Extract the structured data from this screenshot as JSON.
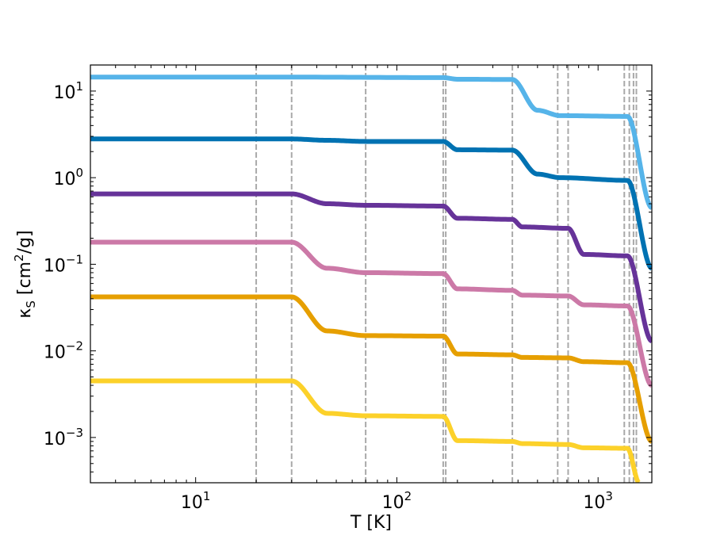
{
  "chart_data": {
    "type": "line",
    "xlabel": "T [K]",
    "ylabel": "κ_S [cm^2/g]",
    "xscale": "log",
    "yscale": "log",
    "xlim": [
      3,
      1850
    ],
    "ylim": [
      0.0003,
      20
    ],
    "xticks": [
      {
        "value": 10,
        "base": "10",
        "exp": "1"
      },
      {
        "value": 100,
        "base": "10",
        "exp": "2"
      },
      {
        "value": 1000,
        "base": "10",
        "exp": "3"
      }
    ],
    "yticks": [
      {
        "value": 10,
        "base": "10",
        "exp": "1"
      },
      {
        "value": 1,
        "base": "10",
        "exp": "0"
      },
      {
        "value": 0.1,
        "base": "10",
        "exp": "−1"
      },
      {
        "value": 0.01,
        "base": "10",
        "exp": "−2"
      },
      {
        "value": 0.001,
        "base": "10",
        "exp": "−3"
      }
    ],
    "grid": false,
    "vertical_lines": [
      20,
      30,
      70,
      170,
      175,
      375,
      630,
      710,
      1350,
      1430,
      1500,
      1550
    ],
    "vertical_line_color": "#a9a9a9",
    "series": [
      {
        "color": "#56b4e9",
        "x": [
          3,
          30,
          170,
          200,
          375,
          500,
          650,
          1400,
          1850
        ],
        "y": [
          14.5,
          14.5,
          14.3,
          13.7,
          13.6,
          6.0,
          5.2,
          5.1,
          0.45
        ]
      },
      {
        "color": "#0072b2",
        "x": [
          3,
          30,
          45,
          70,
          170,
          200,
          375,
          500,
          650,
          1400,
          1850
        ],
        "y": [
          2.8,
          2.8,
          2.7,
          2.62,
          2.62,
          2.1,
          2.08,
          1.1,
          1.0,
          0.93,
          0.09
        ]
      },
      {
        "color": "#663399",
        "x": [
          3,
          30,
          45,
          70,
          170,
          200,
          375,
          420,
          710,
          850,
          1400,
          1850
        ],
        "y": [
          0.65,
          0.65,
          0.5,
          0.48,
          0.47,
          0.34,
          0.33,
          0.27,
          0.26,
          0.13,
          0.125,
          0.013
        ]
      },
      {
        "color": "#cc79a7",
        "x": [
          3,
          30,
          45,
          70,
          170,
          200,
          375,
          420,
          710,
          850,
          1400,
          1850
        ],
        "y": [
          0.18,
          0.18,
          0.09,
          0.08,
          0.078,
          0.052,
          0.05,
          0.044,
          0.043,
          0.034,
          0.033,
          0.004
        ]
      },
      {
        "color": "#e69f00",
        "x": [
          3,
          30,
          45,
          70,
          170,
          200,
          375,
          420,
          710,
          850,
          1400,
          1850
        ],
        "y": [
          0.042,
          0.042,
          0.017,
          0.015,
          0.0148,
          0.0092,
          0.009,
          0.0084,
          0.0083,
          0.0075,
          0.0073,
          0.0009
        ]
      },
      {
        "color": "#fcd12a",
        "x": [
          3,
          30,
          45,
          70,
          170,
          200,
          375,
          420,
          710,
          850,
          1400,
          1600
        ],
        "y": [
          0.0045,
          0.0045,
          0.0019,
          0.00178,
          0.00175,
          0.00092,
          0.0009,
          0.00085,
          0.00083,
          0.00076,
          0.00075,
          0.0003
        ]
      }
    ]
  }
}
